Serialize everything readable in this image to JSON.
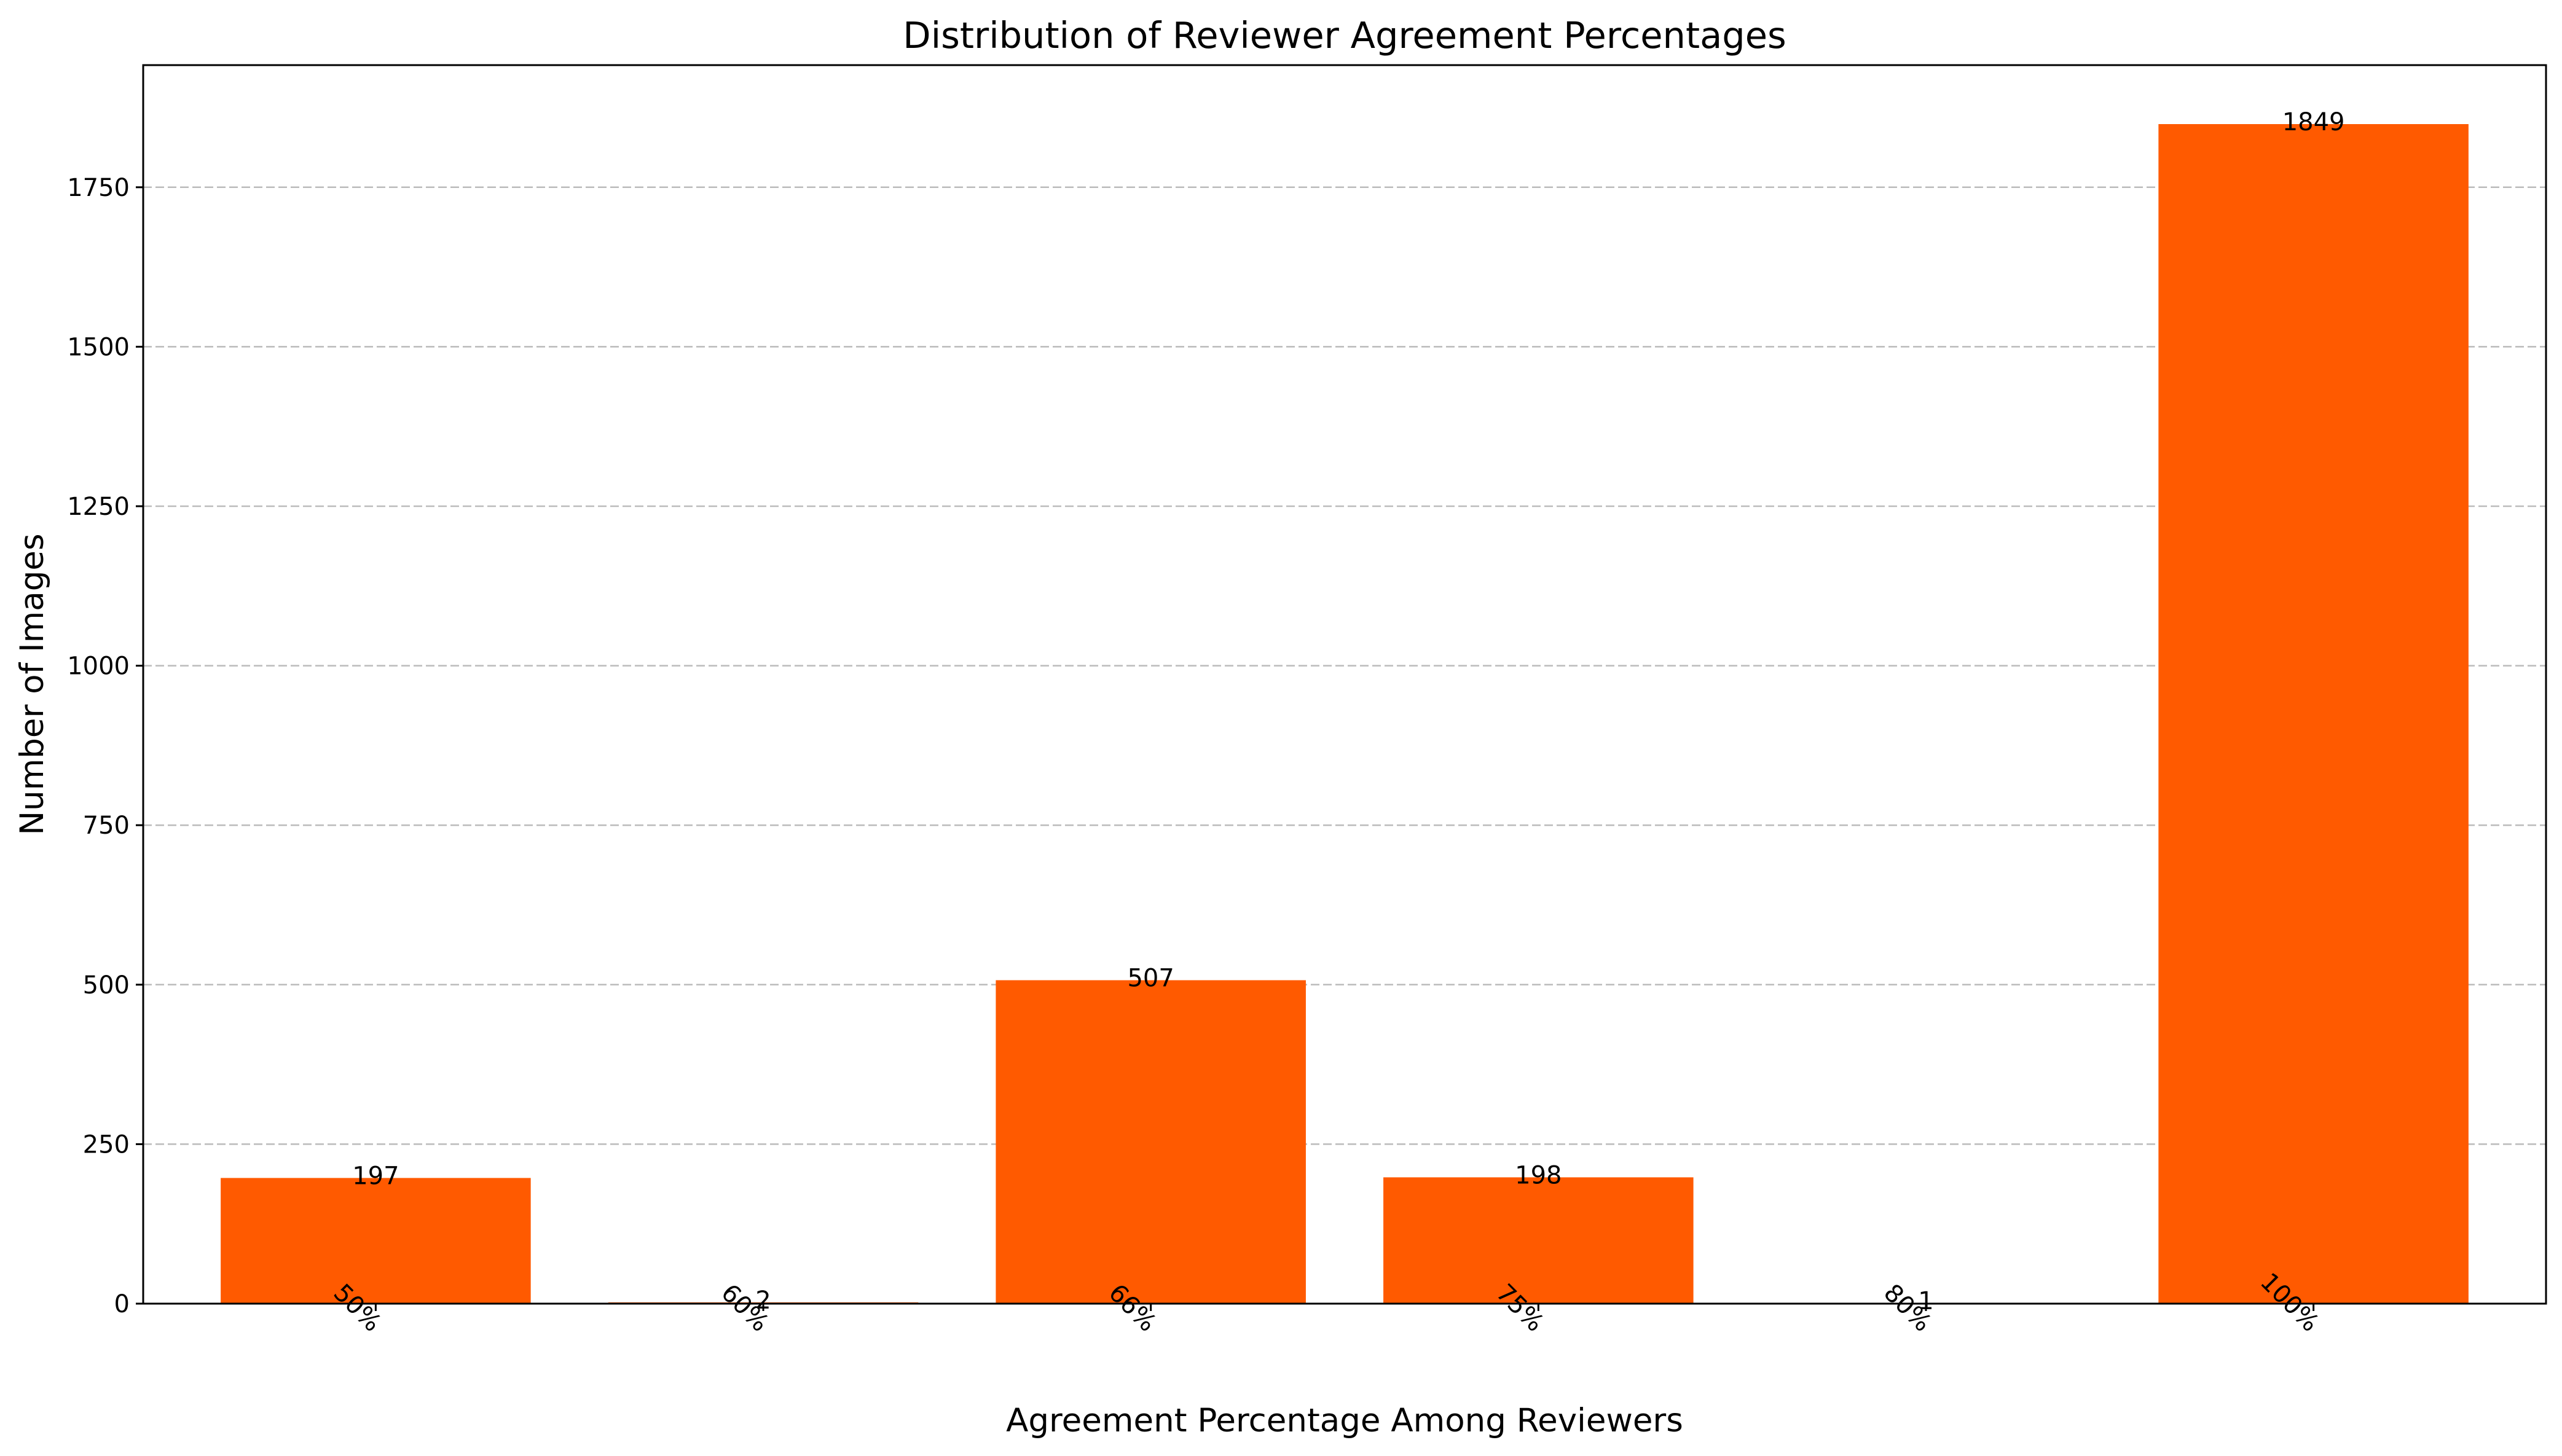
{
  "chart_data": {
    "type": "bar",
    "title": "Distribution of Reviewer Agreement Percentages",
    "xlabel": "Agreement Percentage Among Reviewers",
    "ylabel": "Number of Images",
    "categories": [
      "50%",
      "60%",
      "66%",
      "75%",
      "80%",
      "100%"
    ],
    "values": [
      197,
      2,
      507,
      198,
      1,
      1849
    ],
    "data_labels": [
      "197",
      "2",
      "507",
      "198",
      "1",
      "1849"
    ],
    "ylim": [
      0,
      1941.45
    ],
    "yticks": [
      0,
      250,
      500,
      750,
      1000,
      1250,
      1500,
      1750
    ],
    "ytick_labels": [
      "0",
      "250",
      "500",
      "750",
      "1000",
      "1250",
      "1500",
      "1750"
    ],
    "grid": "y-dashed",
    "legend": "none",
    "bar_color": "#ff5a00",
    "x_tick_rotation_deg": 45
  }
}
